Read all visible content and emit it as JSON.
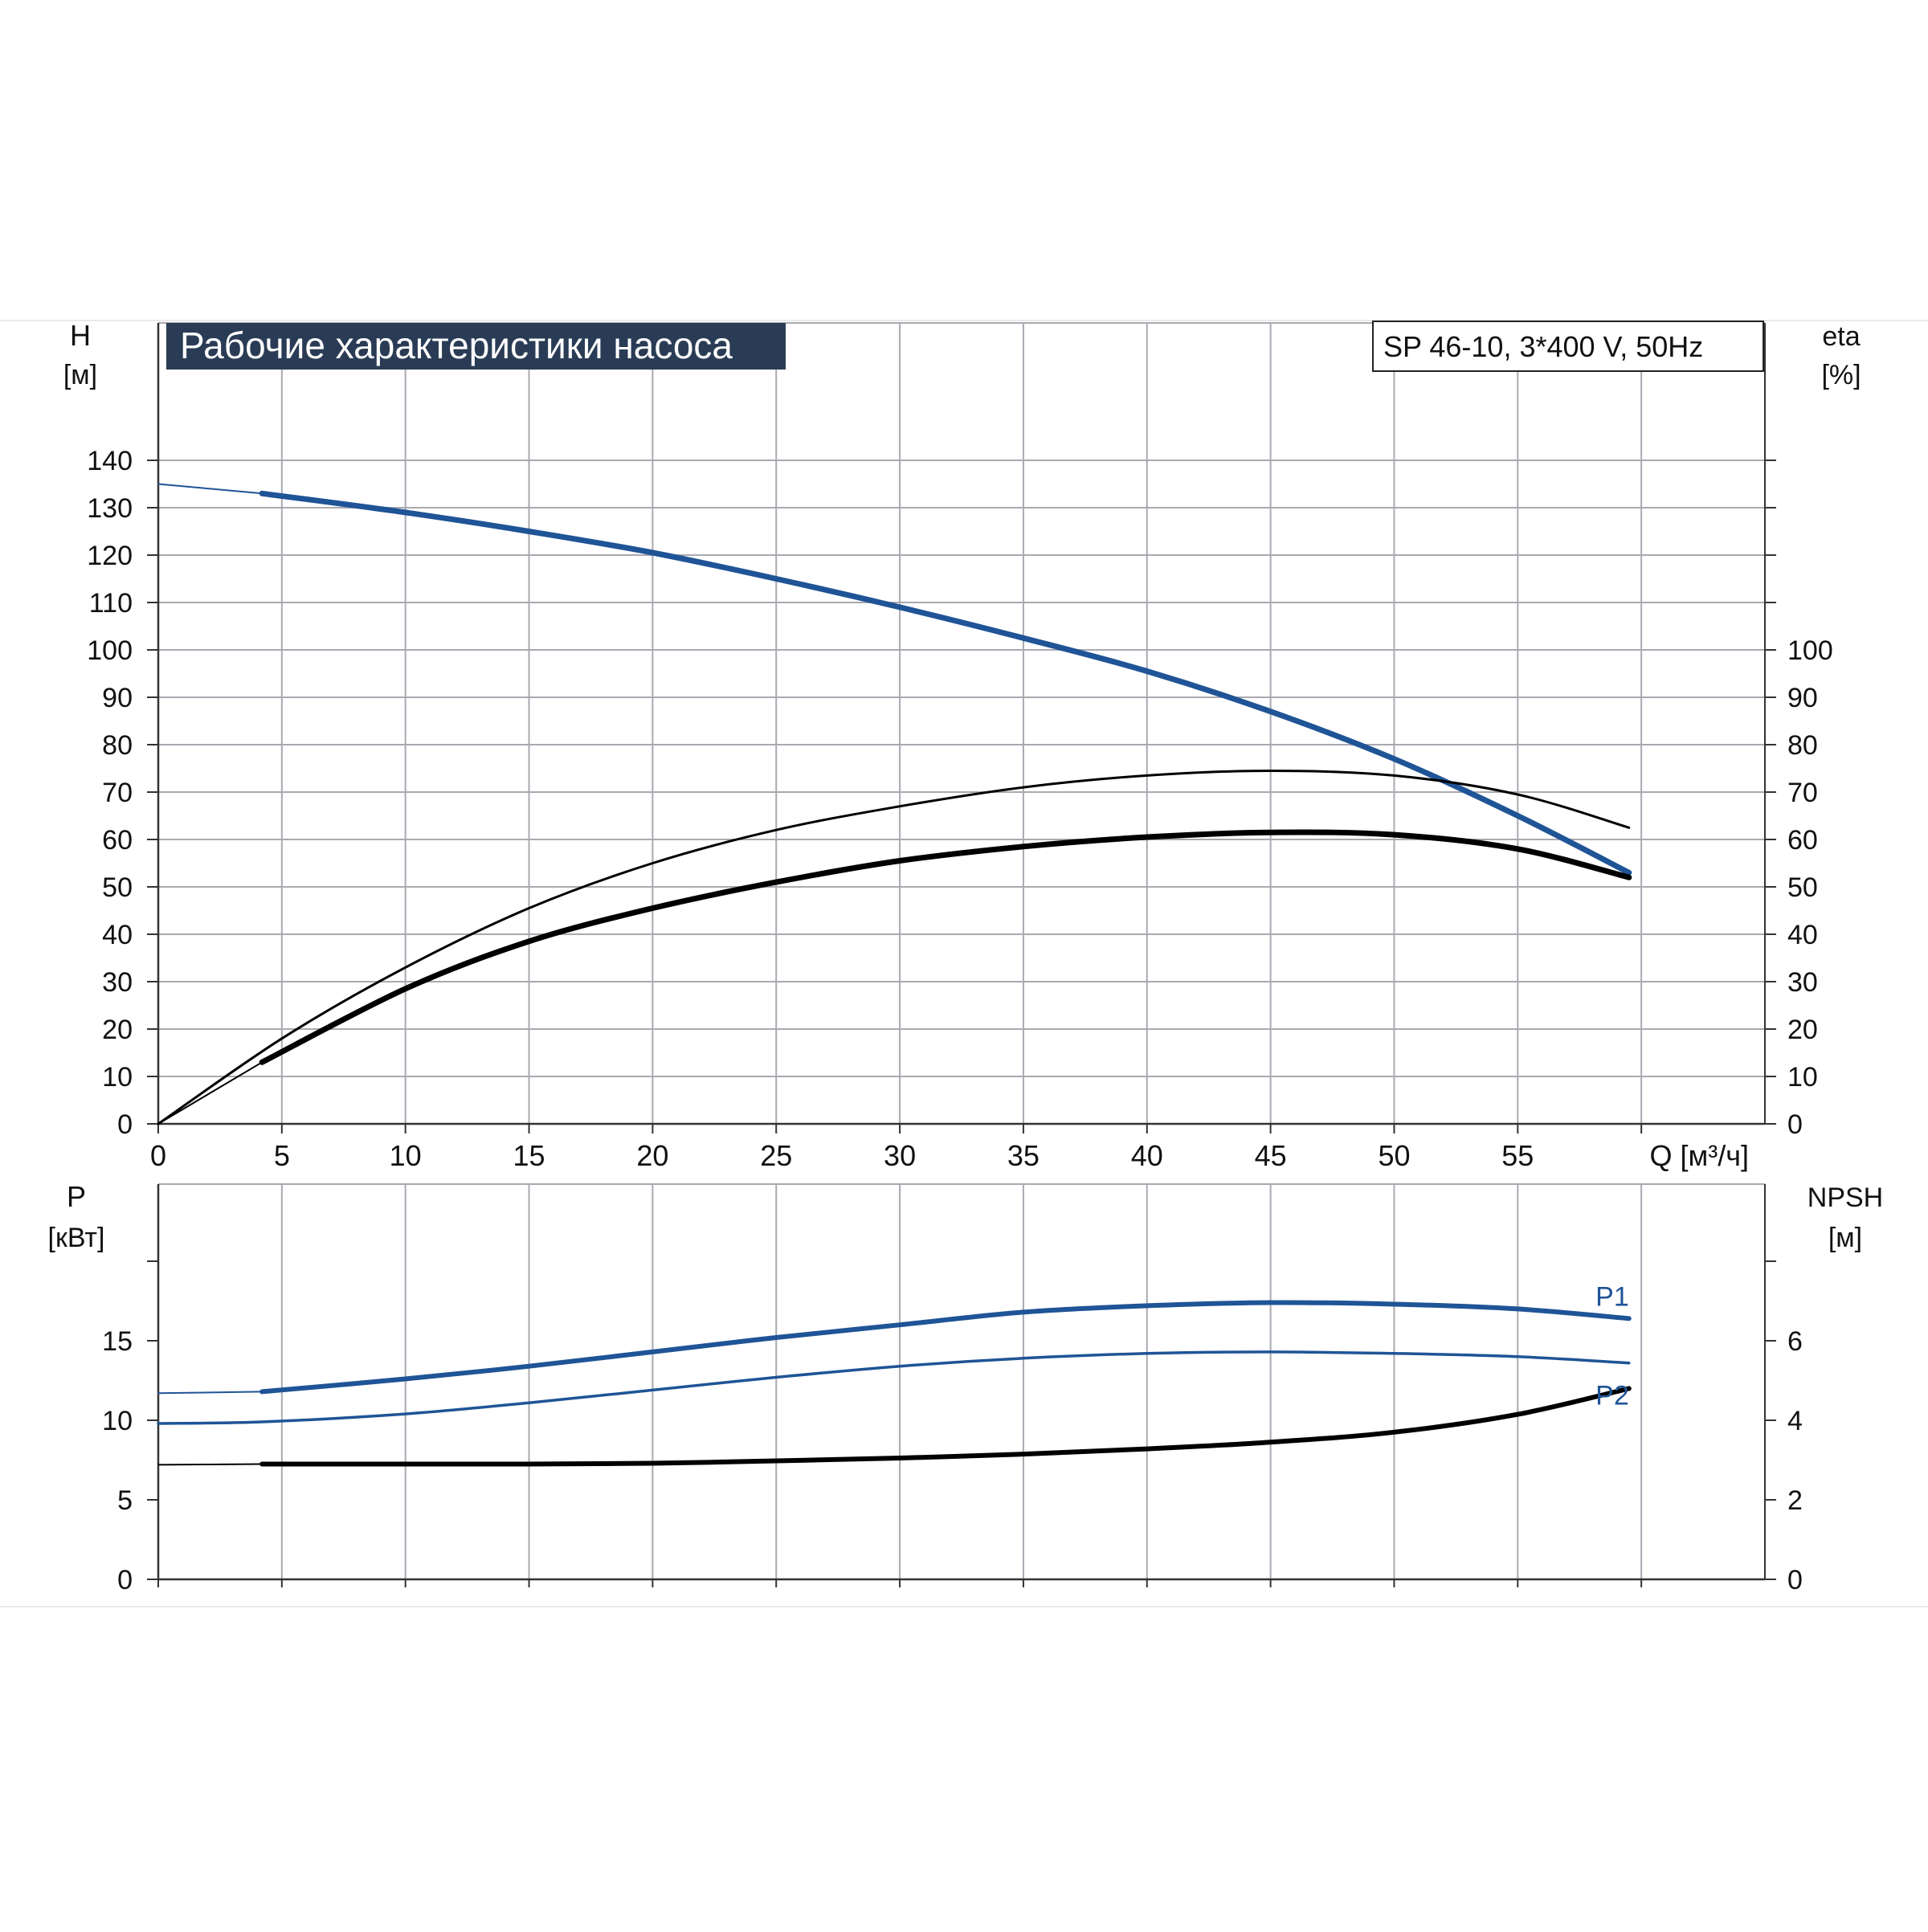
{
  "colors": {
    "title_bg": "#2a3c55",
    "title_fg": "#ffffff",
    "blue": "#1f5496",
    "black": "#000000",
    "grid": "#a9a9b1",
    "axis": "#333333",
    "text": "#111111"
  },
  "chart_data": [
    {
      "type": "line",
      "title": "Рабочие характеристики насоса",
      "model_label": "SP 46-10, 3*400 V, 50Hz",
      "y_left_label": "H",
      "y_left_unit": "[м]",
      "y_right_label": "eta",
      "y_right_unit": "[%]",
      "x_label": "Q [м³/ч]",
      "xlim": [
        0,
        65
      ],
      "ylim": [
        0,
        140
      ],
      "grid": true,
      "x_ticks": [
        "0",
        "5",
        "10",
        "15",
        "20",
        "25",
        "30",
        "35",
        "40",
        "45",
        "50",
        "55"
      ],
      "y_left_ticks": [
        "0",
        "10",
        "20",
        "30",
        "40",
        "50",
        "60",
        "70",
        "80",
        "90",
        "100",
        "110",
        "120",
        "130",
        "140"
      ],
      "y_right_ticks": [
        "0",
        "10",
        "20",
        "30",
        "40",
        "50",
        "60",
        "70",
        "80",
        "90",
        "100"
      ],
      "series": [
        {
          "color": "#1f5496",
          "style": "head",
          "thin_x": [
            0,
            4.2
          ],
          "thin_y": [
            135,
            133
          ],
          "x": [
            4.2,
            10,
            15,
            20,
            25,
            30,
            35,
            40,
            45,
            50,
            55,
            59.5
          ],
          "y": [
            133,
            129,
            125,
            120.5,
            115,
            109,
            102.5,
            95.5,
            87,
            77,
            65,
            53
          ]
        },
        {
          "color": "#000000",
          "style": "thin",
          "x": [
            0,
            5,
            10,
            15,
            20,
            25,
            30,
            35,
            40,
            45,
            50,
            55,
            59.5
          ],
          "y": [
            0,
            18,
            33,
            45.5,
            55,
            62,
            67,
            71,
            73.5,
            74.5,
            73.5,
            69.5,
            62.5
          ]
        },
        {
          "color": "#000000",
          "style": "thick",
          "thin_x": [
            0,
            4.2
          ],
          "thin_y": [
            0,
            13
          ],
          "x": [
            4.2,
            10,
            15,
            20,
            25,
            30,
            35,
            40,
            45,
            50,
            55,
            59.5
          ],
          "y": [
            13,
            28.5,
            38.5,
            45.5,
            51,
            55.5,
            58.5,
            60.5,
            61.5,
            61,
            58,
            52
          ]
        }
      ]
    },
    {
      "type": "line",
      "y_left_label": "P",
      "y_left_unit": "[кВт]",
      "y_right_label": "NPSH",
      "y_right_unit": "[м]",
      "xlim": [
        0,
        65
      ],
      "ylim": [
        0,
        20
      ],
      "y2lim": [
        0,
        8
      ],
      "grid": true,
      "y_left_ticks": [
        "0",
        "5",
        "10",
        "15"
      ],
      "y_right_ticks": [
        "0",
        "2",
        "4",
        "6"
      ],
      "series": [
        {
          "name": "P1",
          "color": "#1f5496",
          "style": "thick",
          "thin_x": [
            0,
            4.2
          ],
          "thin_y": [
            11.7,
            11.8
          ],
          "x": [
            4.2,
            10,
            15,
            20,
            25,
            30,
            35,
            40,
            45,
            50,
            55,
            59.5
          ],
          "y": [
            11.8,
            12.6,
            13.4,
            14.3,
            15.2,
            16.0,
            16.8,
            17.2,
            17.4,
            17.3,
            17.0,
            16.4
          ]
        },
        {
          "name": "P2",
          "color": "#1f5496",
          "style": "thin",
          "x": [
            0,
            4.2,
            10,
            15,
            20,
            25,
            30,
            35,
            40,
            45,
            50,
            55,
            59.5
          ],
          "y": [
            9.8,
            9.9,
            10.4,
            11.1,
            11.9,
            12.7,
            13.4,
            13.9,
            14.2,
            14.3,
            14.2,
            14.0,
            13.6
          ]
        },
        {
          "color": "#000000",
          "style": "thick",
          "axis": "right",
          "thin_x": [
            0,
            4.2
          ],
          "thin_y": [
            2.88,
            2.9
          ],
          "x": [
            4.2,
            10,
            15,
            20,
            25,
            30,
            35,
            40,
            45,
            50,
            55,
            59.5
          ],
          "y": [
            2.9,
            2.9,
            2.9,
            2.92,
            2.98,
            3.05,
            3.15,
            3.28,
            3.45,
            3.7,
            4.15,
            4.8
          ]
        }
      ]
    }
  ]
}
